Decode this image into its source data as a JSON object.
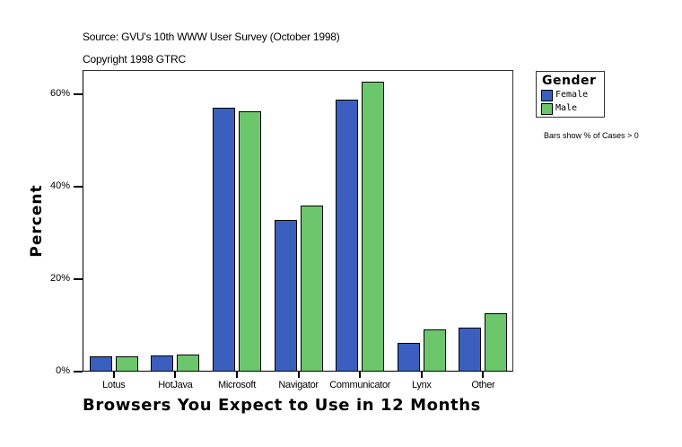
{
  "header": {
    "source": "Source: GVU's 10th WWW User Survey (October 1998)",
    "copyright": "Copyright 1998 GTRC"
  },
  "legend": {
    "title": "Gender",
    "items": [
      {
        "label": "Female",
        "color": "#3a5fbf"
      },
      {
        "label": "Male",
        "color": "#6cc76c"
      }
    ]
  },
  "note": "Bars show % of Cases > 0",
  "axes": {
    "ylabel": "Percent",
    "xlabel": "Browsers You Expect to Use in 12 Months",
    "yticks": [
      "0%",
      "20%",
      "40%",
      "60%"
    ]
  },
  "chart_data": {
    "type": "bar",
    "title": "Browsers You Expect to Use in 12 Months",
    "subtitle": "Source: GVU's 10th WWW User Survey (October 1998)",
    "xlabel": "Browsers You Expect to Use in 12 Months",
    "ylabel": "Percent",
    "ylim": [
      0,
      65
    ],
    "yticks": [
      0,
      20,
      40,
      60
    ],
    "grid": false,
    "legend_position": "right",
    "legend_title": "Gender",
    "annotation": "Bars show % of Cases > 0",
    "categories": [
      "Lotus",
      "HotJava",
      "Microsoft",
      "Navigator",
      "Communicator",
      "Lynx",
      "Other"
    ],
    "series": [
      {
        "name": "Female",
        "color": "#3a5fbf",
        "values": [
          3.3,
          3.5,
          57.1,
          32.8,
          58.8,
          6.2,
          9.5
        ]
      },
      {
        "name": "Male",
        "color": "#6cc76c",
        "values": [
          3.3,
          3.7,
          56.3,
          35.9,
          62.7,
          9.1,
          12.6
        ]
      }
    ]
  }
}
